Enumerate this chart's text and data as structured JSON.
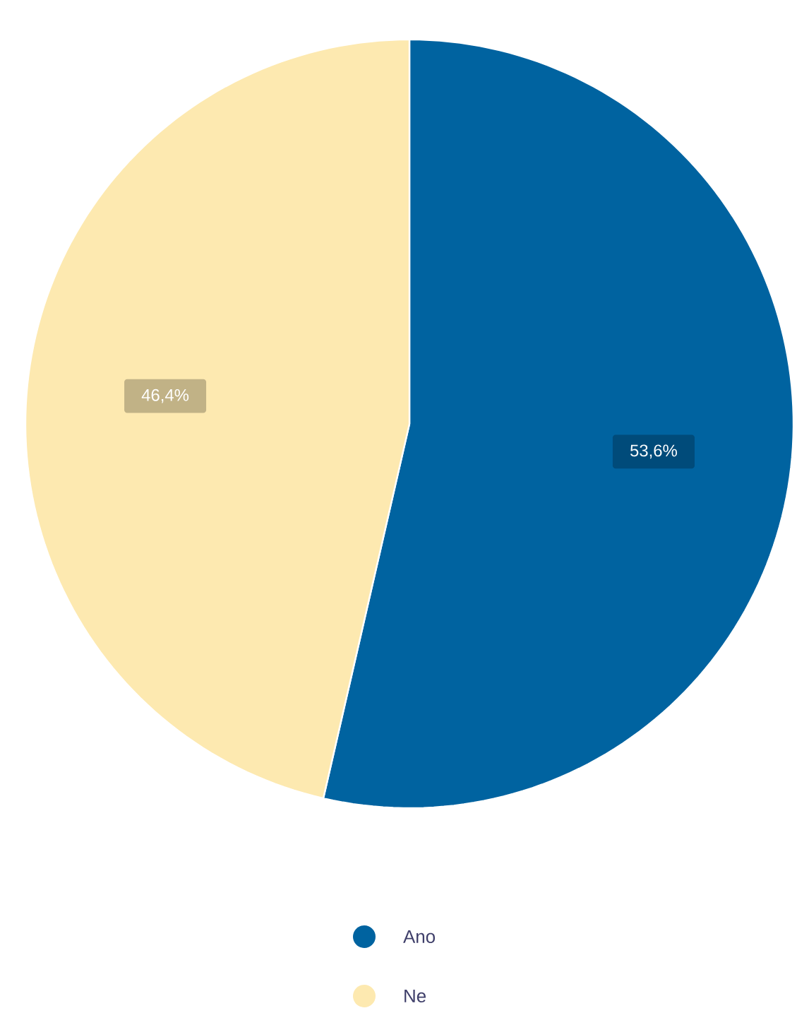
{
  "chart_data": {
    "type": "pie",
    "categories": [
      "Ano",
      "Ne"
    ],
    "values": [
      53.6,
      46.4
    ],
    "colors": [
      "#0063a0",
      "#fde9b0"
    ],
    "value_labels": [
      "53,6%",
      "46,4%"
    ],
    "legend": "bottom"
  }
}
